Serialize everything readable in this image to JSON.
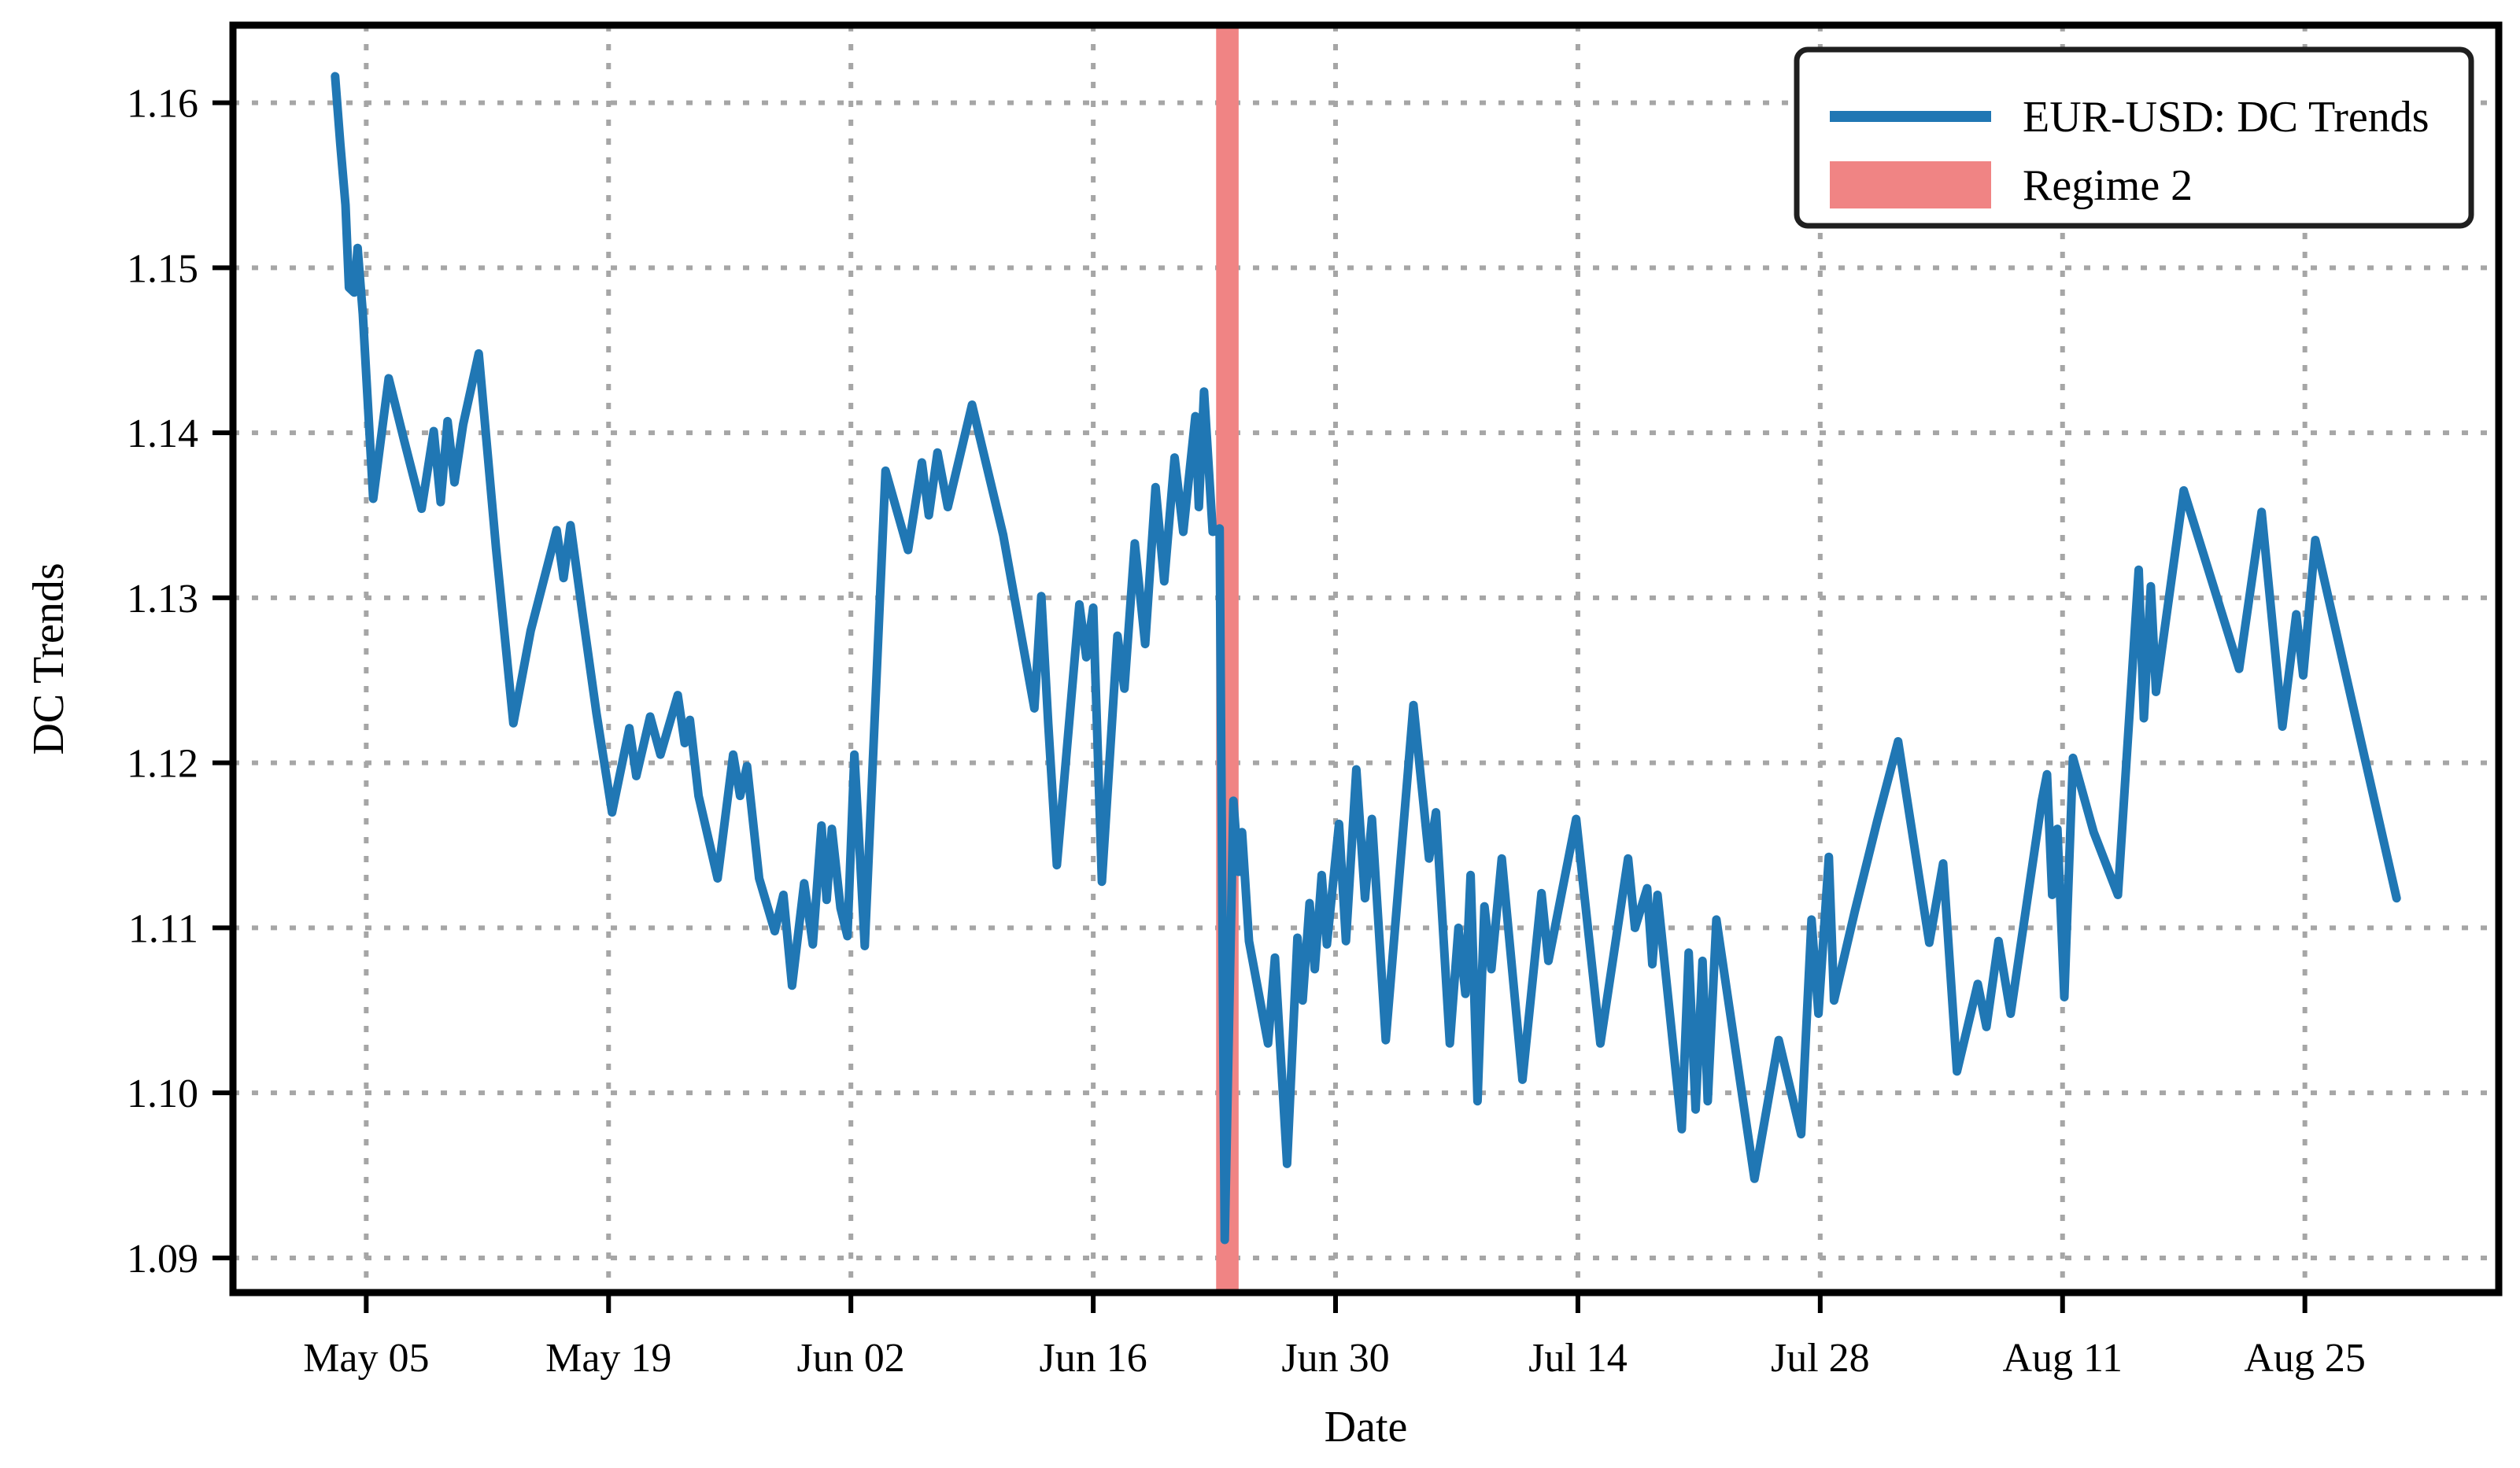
{
  "chart_data": {
    "type": "line",
    "title": "",
    "xlabel": "Date",
    "ylabel": "DC Trends",
    "grid": {
      "visible": true,
      "style": "dotted",
      "color": "#a6a6a6"
    },
    "legend": {
      "position": "upper right",
      "entries": [
        {
          "label": "EUR-USD: DC Trends",
          "kind": "line",
          "color": "#2077b4"
        },
        {
          "label": "Regime 2",
          "kind": "patch",
          "color": "#f08484"
        }
      ]
    },
    "x_axis": {
      "unit": "days since May 03",
      "domain_t": [
        -5.7,
        125.2
      ],
      "ticks": [
        {
          "t": 2,
          "label": "May 05"
        },
        {
          "t": 16,
          "label": "May 19"
        },
        {
          "t": 30,
          "label": "Jun 02"
        },
        {
          "t": 44,
          "label": "Jun 16"
        },
        {
          "t": 58,
          "label": "Jun 30"
        },
        {
          "t": 72,
          "label": "Jul 14"
        },
        {
          "t": 86,
          "label": "Jul 28"
        },
        {
          "t": 100,
          "label": "Aug 11"
        },
        {
          "t": 114,
          "label": "Aug 25"
        }
      ]
    },
    "y_axis": {
      "domain": [
        1.0879,
        1.1647
      ],
      "ticks": [
        1.09,
        1.1,
        1.11,
        1.12,
        1.13,
        1.14,
        1.15,
        1.16
      ],
      "tick_labels": [
        "1.09",
        "1.10",
        "1.11",
        "1.12",
        "1.13",
        "1.14",
        "1.15",
        "1.16"
      ]
    },
    "regions": [
      {
        "name": "Regime 2",
        "color": "#f08484",
        "t_start": 51.1,
        "t_end": 52.4,
        "approx_dates": "Jun 23 - Jun 24"
      }
    ],
    "series": [
      {
        "name": "EUR-USD: DC Trends",
        "color": "#2077b4",
        "linewidth": 11,
        "points": [
          [
            0.2,
            1.1616
          ],
          [
            0.5,
            1.1575
          ],
          [
            0.8,
            1.1538
          ],
          [
            1.0,
            1.1488
          ],
          [
            1.3,
            1.1485
          ],
          [
            1.5,
            1.1512
          ],
          [
            1.8,
            1.1472
          ],
          [
            2.4,
            1.136
          ],
          [
            3.3,
            1.1433
          ],
          [
            4.2,
            1.1395
          ],
          [
            5.2,
            1.1354
          ],
          [
            5.9,
            1.1401
          ],
          [
            6.3,
            1.1358
          ],
          [
            6.7,
            1.1407
          ],
          [
            7.1,
            1.137
          ],
          [
            7.6,
            1.1405
          ],
          [
            8.5,
            1.1448
          ],
          [
            9.5,
            1.133
          ],
          [
            10.5,
            1.1224
          ],
          [
            11.5,
            1.128
          ],
          [
            13.0,
            1.1341
          ],
          [
            13.4,
            1.1312
          ],
          [
            13.8,
            1.1344
          ],
          [
            14.5,
            1.129
          ],
          [
            15.3,
            1.123
          ],
          [
            16.2,
            1.117
          ],
          [
            17.2,
            1.1221
          ],
          [
            17.6,
            1.1192
          ],
          [
            18.4,
            1.1228
          ],
          [
            19.0,
            1.1205
          ],
          [
            20.0,
            1.1241
          ],
          [
            20.4,
            1.1212
          ],
          [
            20.7,
            1.1226
          ],
          [
            21.2,
            1.118
          ],
          [
            22.3,
            1.113
          ],
          [
            23.2,
            1.1205
          ],
          [
            23.6,
            1.118
          ],
          [
            24.0,
            1.1198
          ],
          [
            24.7,
            1.113
          ],
          [
            25.6,
            1.1098
          ],
          [
            26.1,
            1.112
          ],
          [
            26.6,
            1.1065
          ],
          [
            27.3,
            1.1127
          ],
          [
            27.8,
            1.109
          ],
          [
            28.3,
            1.1162
          ],
          [
            28.6,
            1.1117
          ],
          [
            28.9,
            1.116
          ],
          [
            29.4,
            1.1112
          ],
          [
            29.8,
            1.1095
          ],
          [
            30.2,
            1.1205
          ],
          [
            30.5,
            1.1148
          ],
          [
            30.8,
            1.1089
          ],
          [
            32.0,
            1.1377
          ],
          [
            33.3,
            1.1329
          ],
          [
            34.1,
            1.1382
          ],
          [
            34.5,
            1.135
          ],
          [
            35.0,
            1.1388
          ],
          [
            35.6,
            1.1355
          ],
          [
            37.0,
            1.1417
          ],
          [
            38.8,
            1.1338
          ],
          [
            40.6,
            1.1233
          ],
          [
            41.0,
            1.1301
          ],
          [
            41.4,
            1.1224
          ],
          [
            41.9,
            1.1138
          ],
          [
            43.2,
            1.1296
          ],
          [
            43.6,
            1.1264
          ],
          [
            44.0,
            1.1294
          ],
          [
            44.5,
            1.1128
          ],
          [
            45.4,
            1.1277
          ],
          [
            45.8,
            1.1245
          ],
          [
            46.4,
            1.1333
          ],
          [
            47.0,
            1.1272
          ],
          [
            47.6,
            1.1367
          ],
          [
            48.1,
            1.131
          ],
          [
            48.7,
            1.1385
          ],
          [
            49.2,
            1.134
          ],
          [
            49.9,
            1.141
          ],
          [
            50.1,
            1.1355
          ],
          [
            50.4,
            1.1425
          ],
          [
            50.9,
            1.134
          ],
          [
            51.3,
            1.1342
          ],
          [
            51.6,
            1.0911
          ],
          [
            52.1,
            1.1177
          ],
          [
            52.4,
            1.1134
          ],
          [
            52.6,
            1.1158
          ],
          [
            53.0,
            1.1092
          ],
          [
            54.1,
            1.103
          ],
          [
            54.5,
            1.1082
          ],
          [
            55.2,
            1.0957
          ],
          [
            55.8,
            1.1094
          ],
          [
            56.1,
            1.1056
          ],
          [
            56.5,
            1.1115
          ],
          [
            56.8,
            1.1075
          ],
          [
            57.2,
            1.1132
          ],
          [
            57.5,
            1.109
          ],
          [
            58.2,
            1.1163
          ],
          [
            58.6,
            1.1092
          ],
          [
            59.2,
            1.1196
          ],
          [
            59.7,
            1.1118
          ],
          [
            60.1,
            1.1166
          ],
          [
            60.9,
            1.1032
          ],
          [
            62.5,
            1.1235
          ],
          [
            63.4,
            1.1142
          ],
          [
            63.8,
            1.117
          ],
          [
            64.6,
            1.103
          ],
          [
            65.1,
            1.11
          ],
          [
            65.5,
            1.106
          ],
          [
            65.8,
            1.1132
          ],
          [
            66.2,
            1.0995
          ],
          [
            66.6,
            1.1113
          ],
          [
            67.0,
            1.1075
          ],
          [
            67.6,
            1.1142
          ],
          [
            68.8,
            1.1008
          ],
          [
            69.9,
            1.1121
          ],
          [
            70.3,
            1.108
          ],
          [
            71.9,
            1.1166
          ],
          [
            73.3,
            1.103
          ],
          [
            74.9,
            1.1142
          ],
          [
            75.3,
            1.11
          ],
          [
            76.0,
            1.1124
          ],
          [
            76.3,
            1.1078
          ],
          [
            76.6,
            1.112
          ],
          [
            78.0,
            1.0978
          ],
          [
            78.4,
            1.1085
          ],
          [
            78.8,
            1.099
          ],
          [
            79.2,
            1.108
          ],
          [
            79.5,
            1.0995
          ],
          [
            80.0,
            1.1105
          ],
          [
            82.2,
            1.0948
          ],
          [
            83.6,
            1.1032
          ],
          [
            84.9,
            1.0975
          ],
          [
            85.5,
            1.1105
          ],
          [
            85.9,
            1.1048
          ],
          [
            86.5,
            1.1143
          ],
          [
            86.8,
            1.1056
          ],
          [
            88.0,
            1.111
          ],
          [
            89.3,
            1.1165
          ],
          [
            90.5,
            1.1213
          ],
          [
            92.3,
            1.1091
          ],
          [
            93.1,
            1.1139
          ],
          [
            93.9,
            1.1013
          ],
          [
            95.1,
            1.1066
          ],
          [
            95.6,
            1.104
          ],
          [
            96.3,
            1.1092
          ],
          [
            97.0,
            1.1048
          ],
          [
            98.8,
            1.1177
          ],
          [
            99.1,
            1.1193
          ],
          [
            99.4,
            1.112
          ],
          [
            99.7,
            1.116
          ],
          [
            100.1,
            1.1058
          ],
          [
            100.6,
            1.1203
          ],
          [
            101.8,
            1.1158
          ],
          [
            103.2,
            1.112
          ],
          [
            104.4,
            1.1317
          ],
          [
            104.7,
            1.1227
          ],
          [
            105.1,
            1.1307
          ],
          [
            105.4,
            1.1243
          ],
          [
            107.0,
            1.1365
          ],
          [
            110.2,
            1.1257
          ],
          [
            111.5,
            1.1352
          ],
          [
            112.7,
            1.1222
          ],
          [
            113.5,
            1.129
          ],
          [
            113.9,
            1.1253
          ],
          [
            114.6,
            1.1335
          ],
          [
            119.3,
            1.1118
          ]
        ]
      }
    ],
    "style": {
      "spine_color": "#000000",
      "spine_width": 9,
      "tick_length": 26,
      "tick_width": 6,
      "legend_border_color": "#1f1f1f",
      "background": "#ffffff"
    }
  }
}
